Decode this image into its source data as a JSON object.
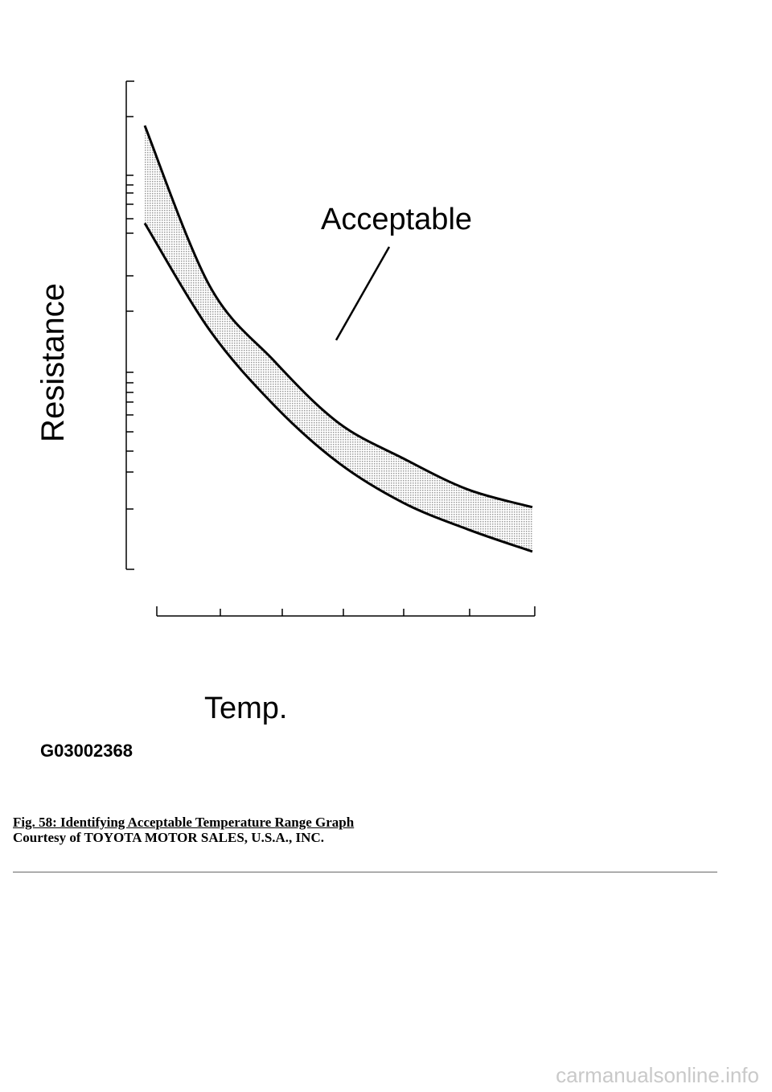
{
  "chart_data": {
    "type": "area",
    "title": "",
    "xlabel": "Temp.",
    "ylabel": "Resistance",
    "annotation": "Acceptable",
    "figure_code": "G03002368",
    "series": [
      {
        "name": "",
        "values": [
          100,
          64,
          47,
          33,
          25,
          18,
          14
        ]
      },
      {
        "name": "",
        "values": [
          78,
          54,
          37,
          24,
          15,
          9,
          4
        ]
      }
    ],
    "x": [
      0,
      1,
      2,
      3,
      4,
      5,
      6
    ],
    "x_ticks": 7,
    "ylim": [
      0,
      110
    ],
    "band_fill": "stippled",
    "grid": false
  },
  "caption": {
    "figure": "Fig. 58: Identifying Acceptable Temperature Range Graph",
    "courtesy": "Courtesy of TOYOTA MOTOR SALES, U.S.A., INC."
  },
  "watermark": "carmanualsonline.info",
  "colors": {
    "line": "#000000",
    "band": "#bdbdbd",
    "watermark": "#c9c9c9"
  }
}
